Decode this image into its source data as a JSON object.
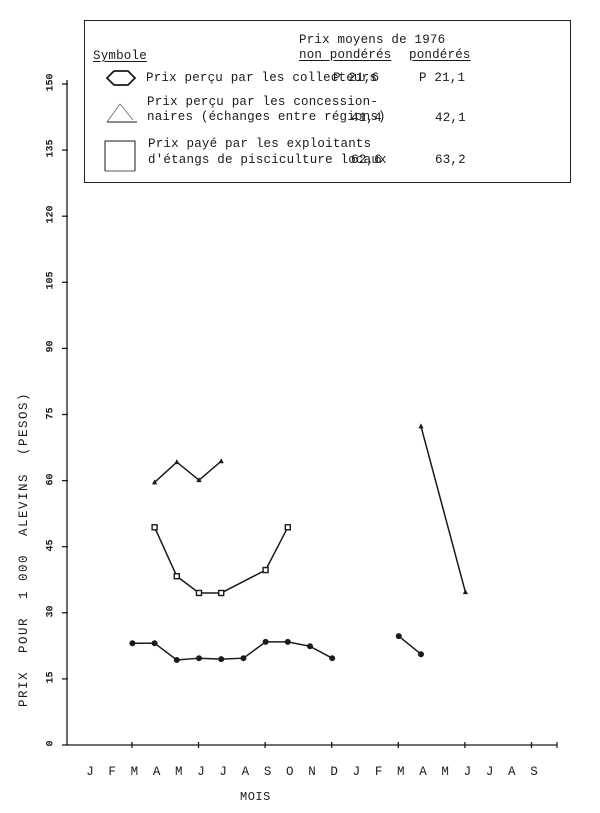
{
  "chart_data": {
    "type": "line",
    "title": "",
    "xlabel": "MOIS",
    "ylabel": "PRIX POUR 1 000 ALEVINS (PESOS)",
    "ylim": [
      0,
      150
    ],
    "yticks": [
      0,
      15,
      30,
      45,
      60,
      75,
      90,
      105,
      120,
      135,
      150
    ],
    "grid": false,
    "legend_position": "top (boxed)",
    "categories": [
      "J",
      "F",
      "M",
      "A",
      "M",
      "J",
      "J",
      "A",
      "S",
      "O",
      "N",
      "D",
      "J",
      "F",
      "M",
      "A",
      "M",
      "J",
      "J",
      "A",
      "S"
    ],
    "series": [
      {
        "name": "Prix perçu par les collecteurs",
        "marker": "hexagon",
        "segments": [
          {
            "x_index": [
              2,
              3,
              4,
              5,
              6,
              7,
              8,
              9,
              10,
              11
            ],
            "values": [
              23.1,
              23.1,
              19.3,
              19.7,
              19.5,
              19.7,
              23.4,
              23.4,
              22.4,
              19.7
            ]
          },
          {
            "x_index": [
              14,
              15
            ],
            "values": [
              24.7,
              20.6
            ]
          }
        ]
      },
      {
        "name": "Prix perçu par les concessionnaires (échanges entre régions)",
        "marker": "triangle",
        "segments": [
          {
            "x_index": [
              3,
              4,
              5,
              6
            ],
            "values": [
              59.6,
              64.2,
              60.1,
              64.4
            ]
          },
          {
            "x_index": [
              15,
              17
            ],
            "values": [
              72.3,
              34.7
            ]
          }
        ]
      },
      {
        "name": "Prix payé par les exploitants d'étangs de pisciculture locaux",
        "marker": "square",
        "segments": [
          {
            "x_index": [
              3,
              4,
              5,
              6,
              8,
              9
            ],
            "values": [
              49.4,
              38.3,
              34.5,
              34.5,
              39.7,
              49.4
            ]
          }
        ]
      }
    ]
  },
  "legend": {
    "header_symbol": "Symbole",
    "header_prices_line1": "Prix moyens de 1976",
    "header_col1": "non pondérés",
    "header_col2": "pondérés",
    "rows": [
      {
        "label_line1": "Prix perçu par les collecteurs",
        "label_line2": "",
        "unweighted": "P 21,6",
        "weighted": "P 21,1"
      },
      {
        "label_line1": "Prix perçu par les concession-",
        "label_line2": "naires (échanges entre régions)",
        "unweighted": "41,4",
        "weighted": "42,1"
      },
      {
        "label_line1": "Prix payé par les exploitants",
        "label_line2": "d'étangs de pisciculture locaux",
        "unweighted": "62,6",
        "weighted": "63,2"
      }
    ]
  },
  "axes": {
    "ylabel": "PRIX  POUR  1 000  ALEVINS  (PESOS)",
    "xlabel": "MOIS",
    "yticks": [
      "0",
      "15",
      "30",
      "45",
      "60",
      "75",
      "90",
      "105",
      "120",
      "135",
      "150"
    ],
    "months": [
      "J",
      "F",
      "M",
      "A",
      "M",
      "J",
      "J",
      "A",
      "S",
      "O",
      "N",
      "D",
      "J",
      "F",
      "M",
      "A",
      "M",
      "J",
      "J",
      "A",
      "S"
    ]
  },
  "colors": {
    "ink": "#1a1a1a",
    "background": "#ffffff"
  }
}
